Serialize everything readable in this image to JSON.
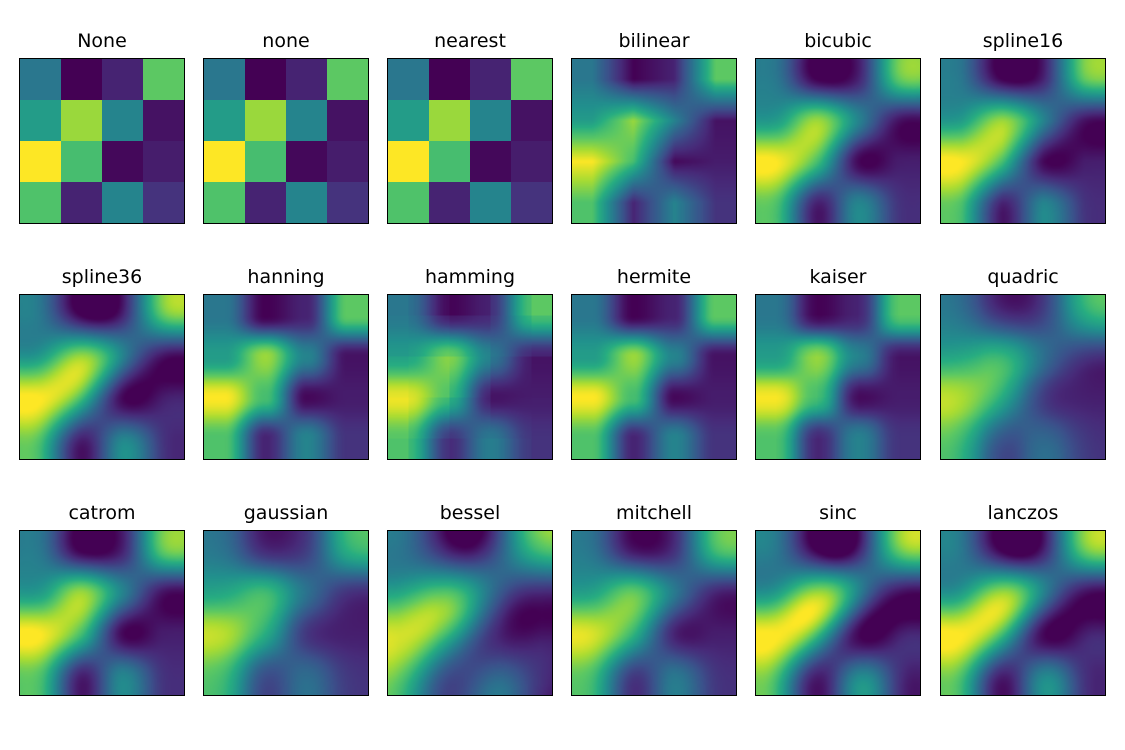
{
  "chart_data": {
    "type": "heatmap",
    "colormap": "viridis",
    "grid": false,
    "values": [
      [
        0.4,
        0.0,
        0.1,
        0.75
      ],
      [
        0.55,
        0.85,
        0.45,
        0.05
      ],
      [
        1.0,
        0.7,
        0.02,
        0.08
      ],
      [
        0.72,
        0.1,
        0.45,
        0.15
      ]
    ],
    "panels": [
      {
        "title": "None",
        "method": "nearest"
      },
      {
        "title": "none",
        "method": "nearest"
      },
      {
        "title": "nearest",
        "method": "nearest"
      },
      {
        "title": "bilinear",
        "method": "bilinear"
      },
      {
        "title": "bicubic",
        "method": "bicubic"
      },
      {
        "title": "spline16",
        "method": "spline16"
      },
      {
        "title": "spline36",
        "method": "spline36"
      },
      {
        "title": "hanning",
        "method": "hanning"
      },
      {
        "title": "hamming",
        "method": "hamming"
      },
      {
        "title": "hermite",
        "method": "hermite"
      },
      {
        "title": "kaiser",
        "method": "kaiser"
      },
      {
        "title": "quadric",
        "method": "quadric"
      },
      {
        "title": "catrom",
        "method": "catrom"
      },
      {
        "title": "gaussian",
        "method": "gaussian"
      },
      {
        "title": "bessel",
        "method": "bessel"
      },
      {
        "title": "mitchell",
        "method": "mitchell"
      },
      {
        "title": "sinc",
        "method": "sinc"
      },
      {
        "title": "lanczos",
        "method": "lanczos"
      }
    ]
  }
}
